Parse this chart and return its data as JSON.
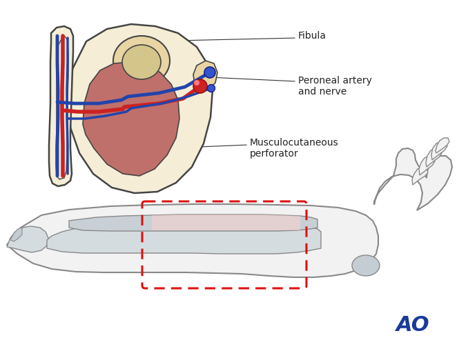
{
  "background_color": "#ffffff",
  "figsize": [
    6.65,
    4.93
  ],
  "dpi": 100,
  "labels": {
    "fibula": "Fibula",
    "peroneal": "Peroneal artery\nand nerve",
    "musculocutaneous": "Musculocutaneous\nperforator",
    "ao": "AO"
  },
  "colors": {
    "skin_light": "#F5EDD6",
    "skin_medium": "#E8D5A3",
    "bone_inner": "#D4C58A",
    "muscle_red": "#C0706A",
    "muscle_dark": "#A85850",
    "artery_red": "#CC2222",
    "vein_blue": "#2244AA",
    "outline": "#444444",
    "leg_outline": "#888888",
    "leg_fill": "#F2F2F2",
    "bone_fill": "#D5DCE0",
    "bone_fill2": "#C8D0D6",
    "dashed_red": "#DD1111",
    "ao_blue": "#1A3A9A",
    "ankle_fill": "#C5CDD4",
    "fibula_pink": "#FFD0CC"
  },
  "annotation_fontsize": 9,
  "ao_fontsize": 22
}
